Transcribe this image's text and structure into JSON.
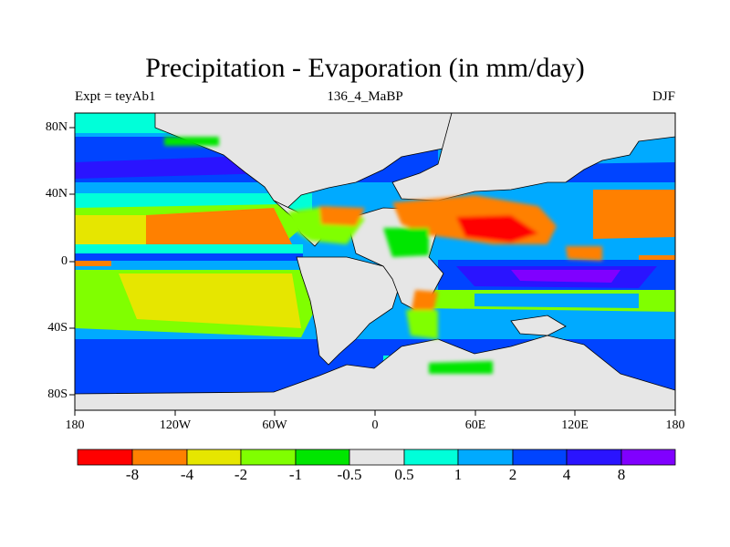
{
  "title": "Precipitation - Evaporation (in mm/day)",
  "subtitle_left": "Expt = teyAb1",
  "subtitle_center": "136_4_MaBP",
  "subtitle_right": "DJF",
  "lat_ticks": [
    "80N",
    "40N",
    "0",
    "40S",
    "80S"
  ],
  "lon_ticks": [
    "180",
    "120W",
    "60W",
    "0",
    "60E",
    "120E",
    "180"
  ],
  "colorbar": {
    "colors": [
      "#ff0000",
      "#ff8000",
      "#e6e600",
      "#80ff00",
      "#00e600",
      "#e6e6e6",
      "#00ffd9",
      "#00aaff",
      "#0044ff",
      "#2a14ff",
      "#8000ff"
    ],
    "labels": [
      "-8",
      "-4",
      "-2",
      "-1",
      "-0.5",
      "0.5",
      "1",
      "2",
      "4",
      "8"
    ]
  }
}
